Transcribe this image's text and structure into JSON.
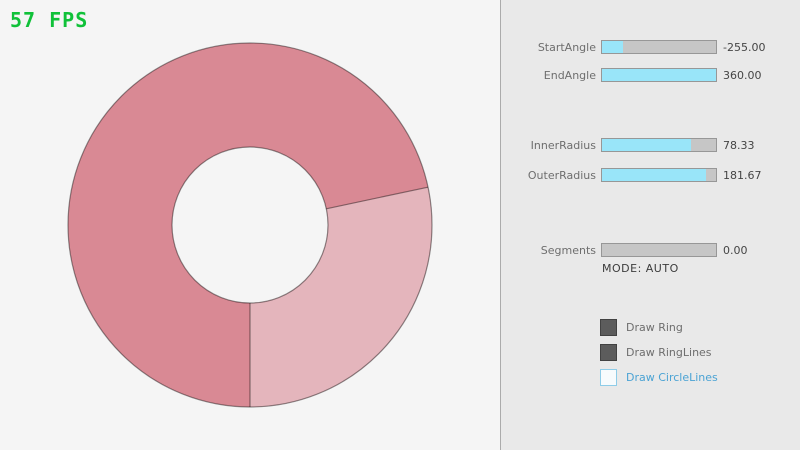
{
  "fps": "57 FPS",
  "colors": {
    "fps_green": "#10c139",
    "canvas_bg": "#f5f5f5",
    "panel_bg": "#e9e9e9",
    "ring_dark": "#d98994",
    "ring_light": "#e4b5bc",
    "ring_outline": "rgba(0,0,0,0.42)",
    "slider_fill_cyan": "#99e5f9",
    "checkbox_checked": "#5c5c5c",
    "unchecked_blue": "#4ba3d4"
  },
  "panel": {
    "sliders": [
      {
        "label": "StartAngle",
        "value": "-255.00",
        "fill_pct": 18
      },
      {
        "label": "EndAngle",
        "value": "360.00",
        "fill_pct": 100
      },
      {
        "label": "InnerRadius",
        "value": "78.33",
        "fill_pct": 78
      },
      {
        "label": "OuterRadius",
        "value": "181.67",
        "fill_pct": 91
      },
      {
        "label": "Segments",
        "value": "0.00",
        "fill_pct": 0
      }
    ],
    "mode_text": "MODE: AUTO",
    "checkboxes": [
      {
        "label": "Draw Ring",
        "checked": true
      },
      {
        "label": "Draw RingLines",
        "checked": true
      },
      {
        "label": "Draw CircleLines",
        "checked": false
      }
    ]
  }
}
